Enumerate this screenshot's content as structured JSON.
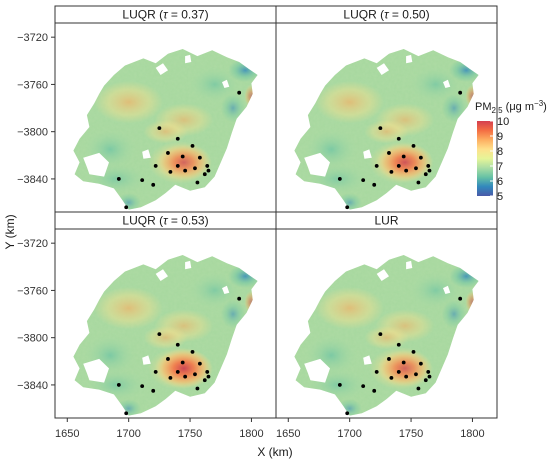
{
  "panels": [
    {
      "prefix": "LUQR (",
      "tau": "τ",
      "suffix": " = 0.37)"
    },
    {
      "prefix": "LUQR (",
      "tau": "τ",
      "suffix": " = 0.50)"
    },
    {
      "prefix": "LUQR (",
      "tau": "τ",
      "suffix": " = 0.53)"
    },
    {
      "prefix": "LUR",
      "tau": "",
      "suffix": ""
    }
  ],
  "axes": {
    "xlabel": "X (km)",
    "ylabel": "Y (km)",
    "x_ticks": [
      "1650",
      "1700",
      "1750",
      "1800"
    ],
    "y_ticks": [
      "−3720",
      "−3760",
      "−3800",
      "−3840"
    ]
  },
  "legend": {
    "title_main": "PM",
    "title_sub": "2.5",
    "title_unit": " (μg m",
    "title_sup": "−3",
    "title_close": ")",
    "ticks": [
      "10",
      "9",
      "8",
      "7",
      "6",
      "5"
    ],
    "colors": [
      "#d53e4f",
      "#f46d43",
      "#fdae61",
      "#fee08b",
      "#e6f598",
      "#abdda4",
      "#66c2a5",
      "#3288bd",
      "#4a5aa8"
    ]
  },
  "chart_data": {
    "type": "heatmap",
    "variable": "PM2.5",
    "colorbar_range": [
      5,
      10
    ],
    "x_range": [
      1640,
      1820
    ],
    "y_range": [
      -3868,
      -3708
    ],
    "panels": [
      "LUQR (τ = 0.37)",
      "LUQR (τ = 0.50)",
      "LUQR (τ = 0.53)",
      "LUR"
    ],
    "hotspot_level": [
      0.72,
      0.85,
      0.95,
      0.72
    ],
    "monitoring_stations": [
      {
        "x": 1790,
        "y": -3767
      },
      {
        "x": 1725,
        "y": -3797
      },
      {
        "x": 1740,
        "y": -3806
      },
      {
        "x": 1752,
        "y": -3812
      },
      {
        "x": 1732,
        "y": -3818
      },
      {
        "x": 1744,
        "y": -3821
      },
      {
        "x": 1758,
        "y": -3822
      },
      {
        "x": 1764,
        "y": -3829
      },
      {
        "x": 1722,
        "y": -3829
      },
      {
        "x": 1740,
        "y": -3829
      },
      {
        "x": 1754,
        "y": -3831
      },
      {
        "x": 1765,
        "y": -3833
      },
      {
        "x": 1746,
        "y": -3833
      },
      {
        "x": 1734,
        "y": -3834
      },
      {
        "x": 1762,
        "y": -3836
      },
      {
        "x": 1692,
        "y": -3840
      },
      {
        "x": 1711,
        "y": -3841
      },
      {
        "x": 1756,
        "y": -3843
      },
      {
        "x": 1720,
        "y": -3845
      },
      {
        "x": 1698,
        "y": -3864
      }
    ]
  }
}
